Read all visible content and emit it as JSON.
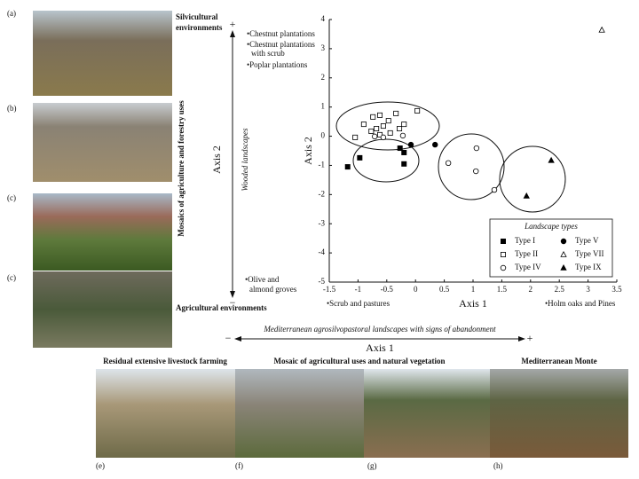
{
  "figure": {
    "panel_labels": [
      "(a)",
      "(b)",
      "(c)",
      "(c)",
      "(e)",
      "(f)",
      "(g)",
      "(h)"
    ],
    "silvicultural": [
      "Silvicultural",
      "environments"
    ],
    "mosaics": "Mosaics of agriculture and forestry uses",
    "agricultural": "Agricultural environments",
    "vertical_axis": {
      "label": "Axis 2",
      "annotation": "Wooded landscapes",
      "plus": "+",
      "minus": "−"
    },
    "top_list": [
      "•Chestnut plantations",
      "•Chestnut plantations",
      "with scrub",
      "•Poplar plantations"
    ],
    "bottom_list": [
      "•Olive and",
      "almond groves"
    ],
    "scrub": "•Scrub and pastures",
    "holm": "•Holm oaks and Pines",
    "horizontal_axis": {
      "annotation": "Mediterranean agrosilvopastoral landscapes with signs of abandonment",
      "label": "Axis 1",
      "minus": "−",
      "plus": "+"
    },
    "captions": [
      "Residual extensive livestock farming",
      "Mosaic of agricultural uses and natural vegetation",
      "Mediterranean Monte"
    ]
  },
  "chart_data": {
    "type": "scatter",
    "x_label": "Axis 1",
    "y_label": "Axis 2",
    "xlim": [
      -1.5,
      3.5
    ],
    "xticks": [
      -1.5,
      -1,
      -0.5,
      0,
      0.5,
      1,
      1.5,
      2,
      2.5,
      3,
      3.5
    ],
    "ylim": [
      -5,
      4
    ],
    "yticks": [
      -5,
      -4,
      -3,
      -2,
      -1,
      0,
      1,
      2,
      3,
      4
    ],
    "legend_title": "Landscape types",
    "legend": "lower right",
    "series": [
      {
        "name": "Type I",
        "color": "#000000",
        "marker": "square",
        "filled": true,
        "x": [
          -1.18,
          -0.97,
          -0.27,
          -0.2,
          -0.2
        ],
        "values": [
          -1.05,
          -0.74,
          -0.41,
          -0.56,
          -0.95
        ]
      },
      {
        "name": "Type II",
        "color": "#000000",
        "marker": "square",
        "filled": false,
        "x": [
          -1.05,
          -0.9,
          -0.74,
          -0.68,
          -0.62,
          -0.56,
          -0.47,
          -0.44,
          -0.34,
          -0.28,
          -0.2,
          0.03,
          -0.62,
          -0.77
        ],
        "values": [
          -0.04,
          0.41,
          0.66,
          0.26,
          0.72,
          0.35,
          0.53,
          0.11,
          0.78,
          0.26,
          0.41,
          0.87,
          0.05,
          0.17
        ]
      },
      {
        "name": "Type IV",
        "color": "#000000",
        "marker": "circle",
        "filled": false,
        "x": [
          -0.71,
          -0.56,
          0.57,
          1.06,
          1.05,
          1.37,
          -0.22
        ],
        "values": [
          -0.01,
          -0.04,
          -0.92,
          -0.41,
          -1.2,
          -1.84,
          0.02
        ]
      },
      {
        "name": "Type V",
        "color": "#000000",
        "marker": "circle",
        "filled": true,
        "x": [
          -0.08,
          0.34
        ],
        "values": [
          -0.29,
          -0.29
        ]
      },
      {
        "name": "Type VII",
        "color": "#000000",
        "marker": "triangle",
        "filled": false,
        "x": [
          3.24
        ],
        "values": [
          3.64
        ]
      },
      {
        "name": "Type IX",
        "color": "#000000",
        "marker": "triangle",
        "filled": true,
        "x": [
          2.36,
          1.93
        ],
        "values": [
          -0.83,
          -2.05
        ]
      }
    ]
  }
}
